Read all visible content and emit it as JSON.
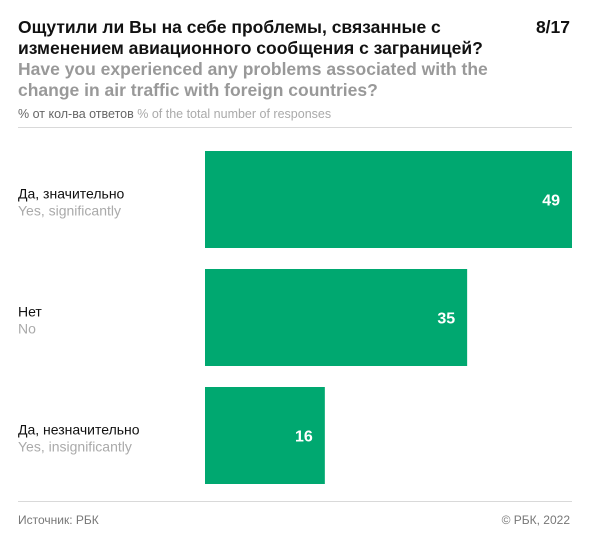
{
  "header": {
    "title_ru": "Ощутили ли Вы на себе проблемы, связанные с изменением авиационного сообщения с заграницей?",
    "title_en": "Have you experienced any problems associated with the change in air traffic with foreign countries?",
    "page": "8/17",
    "unit_ru": "% от кол-ва ответов",
    "unit_en": "% of the total number of responses"
  },
  "footer": {
    "source": "Источник: РБК",
    "copyright": "© РБК, 2022"
  },
  "colors": {
    "bar": "#00a870",
    "label_secondary": "#aaaaaa"
  },
  "chart_data": {
    "type": "bar",
    "orientation": "horizontal",
    "categories": [
      "Да, значительно",
      "Нет",
      "Да, незначительно"
    ],
    "categories_en": [
      "Yes, significantly",
      "No",
      "Yes, insignificantly"
    ],
    "values": [
      49,
      35,
      16
    ],
    "data_labels": [
      "49",
      "35",
      "16"
    ],
    "xlim": [
      0,
      49
    ],
    "grid": false,
    "legend": "none"
  }
}
